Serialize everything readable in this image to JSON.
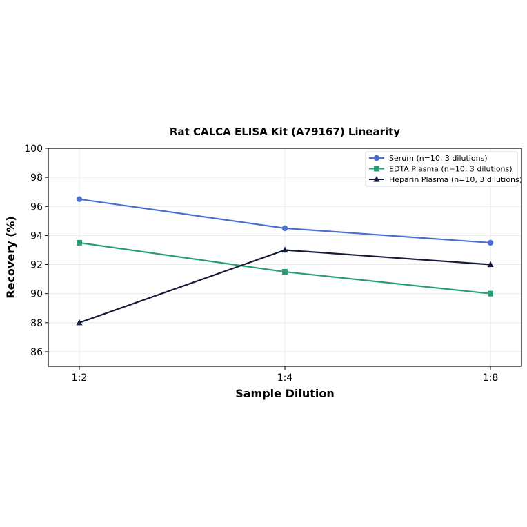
{
  "chart_data": {
    "type": "line",
    "title": "Rat CALCA ELISA Kit (A79167) Linearity",
    "xlabel": "Sample Dilution",
    "ylabel": "Recovery (%)",
    "categories": [
      "1:2",
      "1:4",
      "1:8"
    ],
    "ylim": [
      85,
      100
    ],
    "yticks": [
      86,
      88,
      90,
      92,
      94,
      96,
      98,
      100
    ],
    "grid": true,
    "legend_position": "top-right",
    "series": [
      {
        "name": "Serum (n=10, 3 dilutions)",
        "values": [
          96.5,
          94.5,
          93.5
        ],
        "color": "#4a6fd1",
        "marker": "circle"
      },
      {
        "name": "EDTA Plasma (n=10, 3 dilutions)",
        "values": [
          93.5,
          91.5,
          90.0
        ],
        "color": "#2a9d74",
        "marker": "square"
      },
      {
        "name": "Heparin Plasma (n=10, 3 dilutions)",
        "values": [
          88.0,
          93.0,
          92.0
        ],
        "color": "#141c3a",
        "marker": "triangle"
      }
    ]
  }
}
